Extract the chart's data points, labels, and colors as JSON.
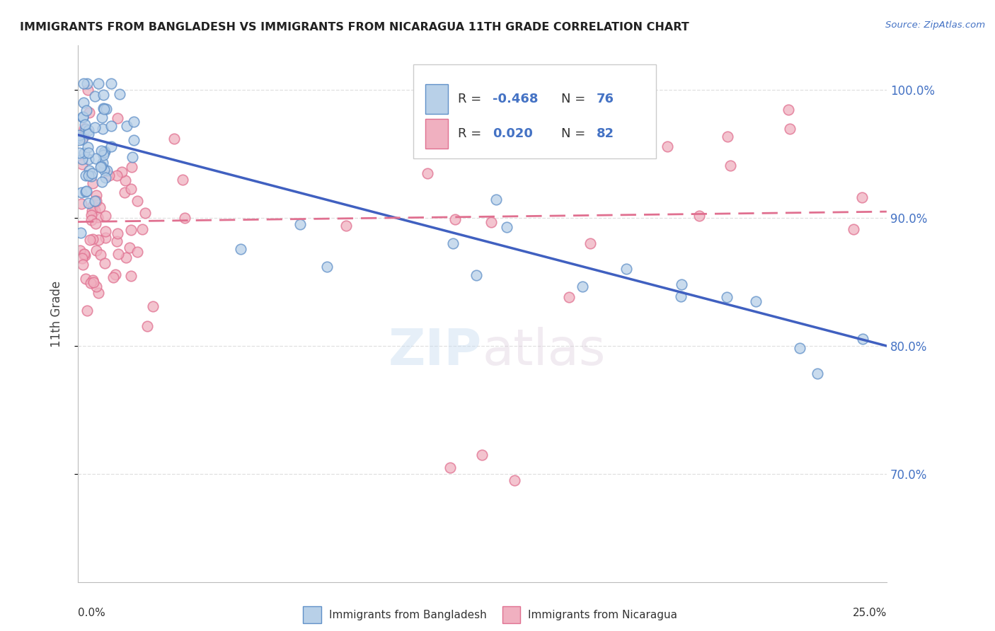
{
  "title": "IMMIGRANTS FROM BANGLADESH VS IMMIGRANTS FROM NICARAGUA 11TH GRADE CORRELATION CHART",
  "source": "Source: ZipAtlas.com",
  "ylabel": "11th Grade",
  "watermark_zip": "ZIP",
  "watermark_atlas": "atlas",
  "bangladesh_color": "#b8d0e8",
  "bangladesh_edge_color": "#6090c8",
  "nicaragua_color": "#f0b0c0",
  "nicaragua_edge_color": "#e07090",
  "bangladesh_line_color": "#4060c0",
  "nicaragua_line_color": "#e07090",
  "bg_color": "#ffffff",
  "grid_color": "#dddddd",
  "right_tick_color": "#4472c4",
  "title_color": "#222222",
  "source_color": "#4472c4",
  "xlim": [
    0.0,
    0.25
  ],
  "ylim": [
    0.615,
    1.035
  ],
  "yticks": [
    0.7,
    0.8,
    0.9,
    1.0
  ],
  "ytick_labels": [
    "70.0%",
    "80.0%",
    "90.0%",
    "100.0%"
  ],
  "R_bangladesh": "-0.468",
  "N_bangladesh": "76",
  "R_nicaragua": "0.020",
  "N_nicaragua": "82",
  "legend_label_bangladesh": "Immigrants from Bangladesh",
  "legend_label_nicaragua": "Immigrants from Nicaragua"
}
